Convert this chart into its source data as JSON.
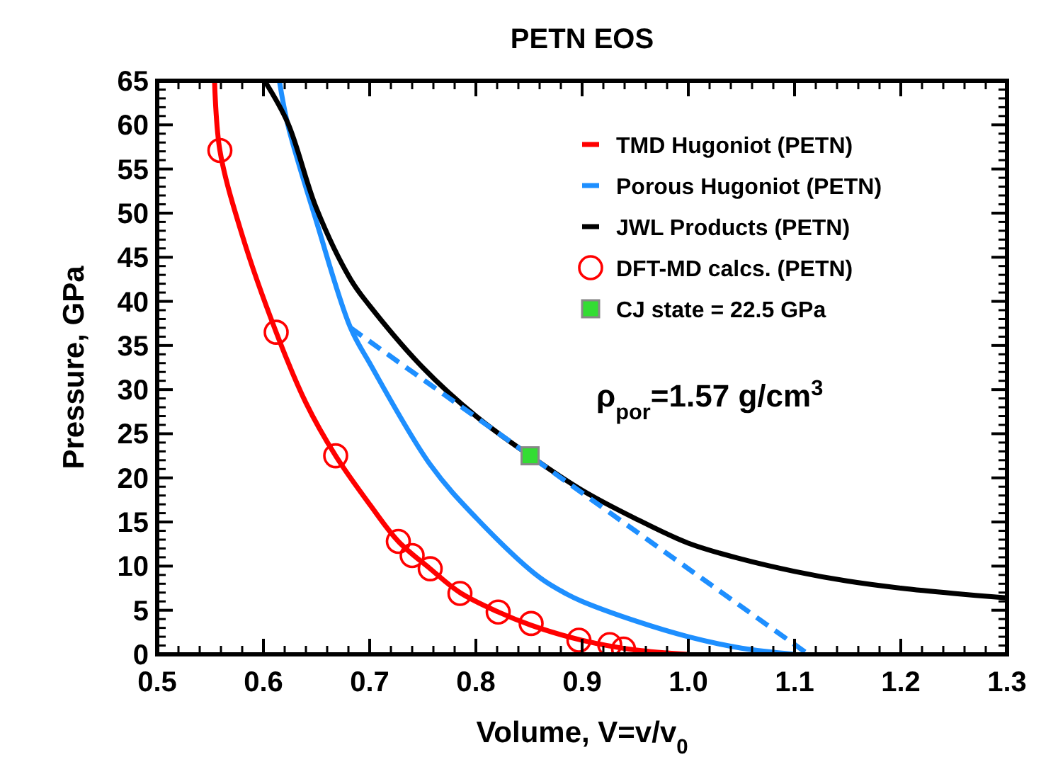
{
  "chart_data": {
    "type": "line",
    "title": "PETN EOS",
    "xlabel": "Volume, V=v/v$_{0}$",
    "ylabel": "Pressure, GPa",
    "xlim": [
      0.5,
      1.3
    ],
    "xticks": [
      0.5,
      0.6,
      0.7,
      0.8,
      0.9,
      {
        "value": 1,
        "label": "1.0"
      },
      1.1,
      1.2,
      1.3
    ],
    "ylim": [
      0,
      65
    ],
    "yticks": [
      0,
      5,
      10,
      15,
      20,
      25,
      30,
      35,
      40,
      45,
      50,
      55,
      60,
      65
    ],
    "grid": false,
    "legend": "top right",
    "annotations": [
      "ρ$_{por}$=1.57 g/cm$^{3}$"
    ],
    "series": [
      {
        "name": "TMD Hugoniot (PETN)",
        "color": "#ff0000",
        "marker": "none",
        "line_style": "solid",
        "x": [
          0.554,
          0.559,
          0.58,
          0.612,
          0.64,
          0.668,
          0.7,
          0.727,
          0.757,
          0.785,
          0.821,
          0.852,
          0.9,
          0.95,
          1.0
        ],
        "values": [
          65,
          57.1,
          47.5,
          36.5,
          28.5,
          22.5,
          17,
          12.8,
          9.7,
          7.0,
          4.8,
          3.3,
          1.6,
          0.5,
          0
        ]
      },
      {
        "name": "Porous Hugoniot (PETN)",
        "color": "#1e8fff",
        "marker": "none",
        "line_style": "solid",
        "x": [
          0.615,
          0.623,
          0.65,
          0.682,
          0.7,
          0.757,
          0.8,
          0.859,
          0.886,
          0.9,
          0.95,
          1.0,
          1.05,
          1.1
        ],
        "values": [
          65,
          60,
          49,
          37,
          33,
          21.5,
          15.5,
          8.8,
          6.8,
          6.0,
          3.8,
          2.0,
          0.7,
          0
        ]
      },
      {
        "name": "JWL Products (PETN)",
        "color": "#000000",
        "marker": "none",
        "line_style": "solid",
        "x": [
          0.601,
          0.623,
          0.65,
          0.682,
          0.7,
          0.75,
          0.8,
          0.851,
          0.9,
          0.95,
          1.0,
          1.05,
          1.1,
          1.15,
          1.2,
          1.25,
          1.3
        ],
        "values": [
          65,
          60.2,
          50.5,
          42.5,
          39.5,
          32.5,
          27,
          22.5,
          18.6,
          15.4,
          12.6,
          10.8,
          9.4,
          8.3,
          7.5,
          6.9,
          6.4
        ]
      },
      {
        "name": "DFT-MD calcs. (PETN)",
        "type": "scatter",
        "color": "#ff0000",
        "marker": "circle",
        "x": [
          0.559,
          0.612,
          0.668,
          0.727,
          0.74,
          0.757,
          0.785,
          0.821,
          0.852,
          0.897,
          0.926,
          0.939
        ],
        "values": [
          57.1,
          36.5,
          22.5,
          12.8,
          11.2,
          9.7,
          6.9,
          4.8,
          3.5,
          1.6,
          1.1,
          0.6
        ]
      },
      {
        "name": "CJ state = 22.5 GPa",
        "type": "scatter",
        "color": "#33dd33",
        "marker": "square",
        "x": [
          0.851
        ],
        "values": [
          22.5
        ]
      },
      {
        "color": "#1e8fff",
        "marker": "none",
        "line_style": "dashed",
        "x": [
          0.682,
          0.851,
          1.113
        ],
        "values": [
          37,
          22.5,
          0
        ]
      }
    ]
  }
}
